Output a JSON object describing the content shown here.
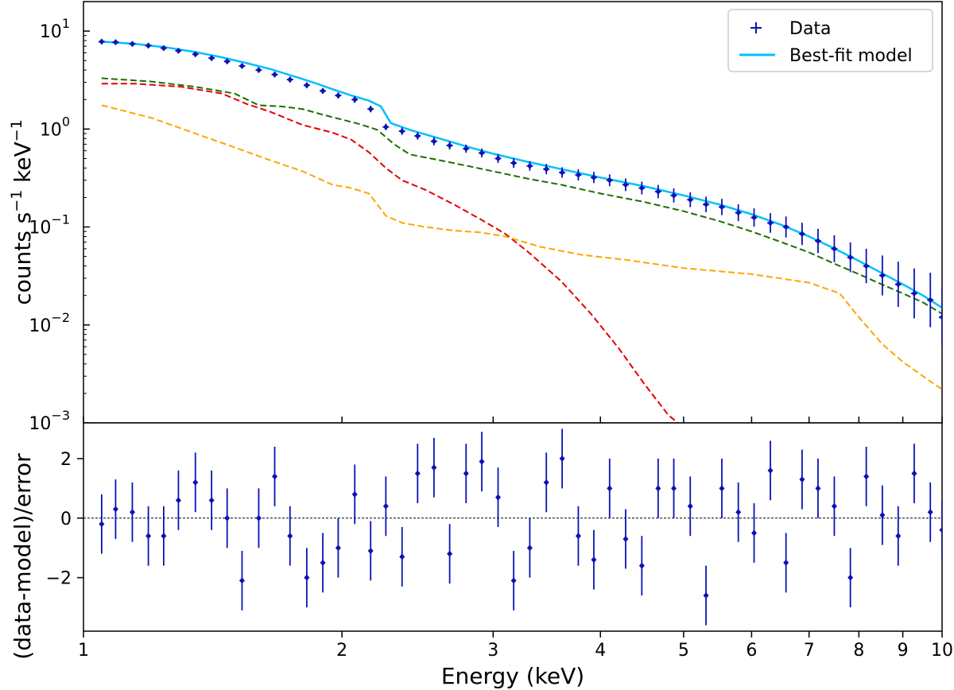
{
  "chart_data": [
    {
      "type": "line",
      "panel": "spectrum",
      "x_scale": "log",
      "y_scale": "log",
      "xlim": [
        1,
        10
      ],
      "ylim": [
        0.001,
        20
      ],
      "xlabel": "",
      "ylabel": "counts s⁻¹ keV⁻¹",
      "ylabel_parts": {
        "base": "counts s",
        "exp1": "−1",
        "mid": " keV",
        "exp2": "−1"
      },
      "y_ticks": [
        {
          "value": 10,
          "mantissa": "10",
          "exponent": "1"
        },
        {
          "value": 1,
          "mantissa": "10",
          "exponent": "0"
        },
        {
          "value": 0.1,
          "mantissa": "10",
          "exponent": "−1"
        },
        {
          "value": 0.01,
          "mantissa": "10",
          "exponent": "−2"
        },
        {
          "value": 0.001,
          "mantissa": "10",
          "exponent": "−3"
        }
      ],
      "legend": {
        "location": "top-right",
        "entries": [
          {
            "label": "Data",
            "marker": "+",
            "color": "#0a14b4"
          },
          {
            "label": "Best-fit model",
            "line": "solid",
            "color": "#00bfff"
          }
        ]
      },
      "series": [
        {
          "name": "Data",
          "kind": "points_with_errors",
          "color": "#0a14b4",
          "x": [
            1.05,
            1.09,
            1.14,
            1.19,
            1.24,
            1.29,
            1.35,
            1.41,
            1.47,
            1.53,
            1.6,
            1.67,
            1.74,
            1.82,
            1.9,
            1.98,
            2.07,
            2.16,
            2.25,
            2.35,
            2.45,
            2.56,
            2.67,
            2.79,
            2.91,
            3.04,
            3.17,
            3.31,
            3.46,
            3.61,
            3.77,
            3.93,
            4.1,
            4.28,
            4.47,
            4.67,
            4.87,
            5.09,
            5.31,
            5.54,
            5.79,
            6.04,
            6.31,
            6.58,
            6.87,
            7.17,
            7.49,
            7.82,
            8.16,
            8.52,
            8.89,
            9.28,
            9.69,
            10.0
          ],
          "y": [
            7.8,
            7.7,
            7.4,
            7.1,
            6.7,
            6.3,
            5.8,
            5.3,
            4.9,
            4.4,
            4.0,
            3.6,
            3.2,
            2.8,
            2.45,
            2.2,
            2.0,
            1.6,
            1.05,
            0.95,
            0.85,
            0.75,
            0.68,
            0.63,
            0.57,
            0.5,
            0.45,
            0.42,
            0.39,
            0.36,
            0.34,
            0.32,
            0.3,
            0.27,
            0.25,
            0.23,
            0.21,
            0.19,
            0.17,
            0.16,
            0.14,
            0.125,
            0.11,
            0.1,
            0.085,
            0.072,
            0.06,
            0.049,
            0.04,
            0.032,
            0.026,
            0.021,
            0.018,
            0.012
          ],
          "err_factor": [
            1.05,
            1.05,
            1.05,
            1.05,
            1.05,
            1.05,
            1.05,
            1.06,
            1.06,
            1.06,
            1.06,
            1.06,
            1.07,
            1.07,
            1.07,
            1.07,
            1.08,
            1.08,
            1.08,
            1.09,
            1.09,
            1.1,
            1.1,
            1.1,
            1.11,
            1.11,
            1.12,
            1.12,
            1.13,
            1.13,
            1.14,
            1.14,
            1.15,
            1.16,
            1.16,
            1.17,
            1.18,
            1.19,
            1.2,
            1.21,
            1.22,
            1.24,
            1.26,
            1.28,
            1.3,
            1.33,
            1.37,
            1.42,
            1.5,
            1.6,
            1.7,
            1.8,
            1.9,
            2.0
          ]
        },
        {
          "name": "Best-fit model",
          "kind": "line",
          "style": "solid",
          "color": "#00bfff",
          "x": [
            1.05,
            1.15,
            1.25,
            1.35,
            1.45,
            1.55,
            1.65,
            1.75,
            1.85,
            1.95,
            2.05,
            2.15,
            2.22,
            2.28,
            2.4,
            2.6,
            2.8,
            3.0,
            3.3,
            3.6,
            4.0,
            4.5,
            5.0,
            5.5,
            6.0,
            6.5,
            7.0,
            7.5,
            8.0,
            8.5,
            9.0,
            9.5,
            10.0
          ],
          "y": [
            7.8,
            7.4,
            6.8,
            6.1,
            5.4,
            4.7,
            4.1,
            3.5,
            3.0,
            2.55,
            2.2,
            1.95,
            1.7,
            1.15,
            0.98,
            0.8,
            0.66,
            0.56,
            0.46,
            0.39,
            0.32,
            0.26,
            0.21,
            0.17,
            0.135,
            0.105,
            0.08,
            0.06,
            0.045,
            0.034,
            0.026,
            0.02,
            0.015
          ]
        },
        {
          "name": "Component 1",
          "kind": "line",
          "style": "dashed",
          "color": "#1a6e00",
          "x": [
            1.05,
            1.2,
            1.35,
            1.5,
            1.6,
            1.7,
            1.8,
            1.9,
            2.0,
            2.1,
            2.2,
            2.3,
            2.4,
            2.6,
            2.8,
            3.0,
            3.3,
            3.6,
            4.0,
            4.5,
            5.0,
            5.5,
            6.0,
            6.5,
            7.0,
            7.5,
            8.0,
            8.5,
            9.0,
            9.5,
            10.0
          ],
          "y": [
            3.3,
            3.05,
            2.7,
            2.3,
            1.75,
            1.7,
            1.6,
            1.4,
            1.25,
            1.12,
            0.98,
            0.7,
            0.55,
            0.48,
            0.42,
            0.37,
            0.31,
            0.27,
            0.22,
            0.18,
            0.145,
            0.115,
            0.09,
            0.07,
            0.055,
            0.042,
            0.033,
            0.026,
            0.021,
            0.017,
            0.013
          ]
        },
        {
          "name": "Component 2",
          "kind": "line",
          "style": "dashed",
          "color": "#e50000",
          "x": [
            1.05,
            1.15,
            1.3,
            1.45,
            1.55,
            1.65,
            1.8,
            1.95,
            2.05,
            2.15,
            2.25,
            2.35,
            2.5,
            2.7,
            2.9,
            3.1,
            3.3,
            3.6,
            3.9,
            4.2,
            4.5,
            4.8,
            5.0
          ],
          "y": [
            2.9,
            2.9,
            2.7,
            2.3,
            1.8,
            1.5,
            1.1,
            0.92,
            0.78,
            0.58,
            0.4,
            0.3,
            0.24,
            0.17,
            0.12,
            0.085,
            0.055,
            0.028,
            0.013,
            0.0058,
            0.0025,
            0.0012,
            0.0009
          ]
        },
        {
          "name": "Component 3",
          "kind": "line",
          "style": "dashed",
          "color": "#ffa500",
          "x": [
            1.05,
            1.2,
            1.35,
            1.5,
            1.65,
            1.8,
            1.95,
            2.05,
            2.15,
            2.25,
            2.35,
            2.5,
            2.7,
            2.9,
            3.1,
            3.4,
            3.8,
            4.3,
            5.0,
            6.0,
            7.0,
            7.6,
            8.0,
            8.5,
            9.0,
            9.5,
            10.0
          ],
          "y": [
            1.75,
            1.3,
            0.9,
            0.65,
            0.48,
            0.37,
            0.27,
            0.25,
            0.22,
            0.13,
            0.11,
            0.1,
            0.092,
            0.088,
            0.08,
            0.063,
            0.052,
            0.046,
            0.038,
            0.033,
            0.027,
            0.021,
            0.012,
            0.0065,
            0.0042,
            0.003,
            0.0022
          ]
        }
      ]
    },
    {
      "type": "scatter",
      "panel": "residuals",
      "x_scale": "log",
      "xlim": [
        1,
        10
      ],
      "ylim": [
        -3.8,
        3.2
      ],
      "xlabel": "Energy (keV)",
      "ylabel": "(data-model)/error",
      "x_ticks": [
        {
          "value": 1,
          "label": "1"
        },
        {
          "value": 2,
          "label": "2"
        },
        {
          "value": 3,
          "label": "3"
        },
        {
          "value": 4,
          "label": "4"
        },
        {
          "value": 5,
          "label": "5"
        },
        {
          "value": 6,
          "label": "6"
        },
        {
          "value": 7,
          "label": "7"
        },
        {
          "value": 8,
          "label": "8"
        },
        {
          "value": 9,
          "label": "9"
        },
        {
          "value": 10,
          "label": "10"
        }
      ],
      "y_ticks": [
        {
          "value": 2,
          "label": "2"
        },
        {
          "value": 0,
          "label": "0"
        },
        {
          "value": -2,
          "label": "−2"
        }
      ],
      "zero_line": true,
      "series": [
        {
          "name": "Residuals",
          "color": "#0a14b4",
          "error": 1.0,
          "x": [
            1.05,
            1.09,
            1.14,
            1.19,
            1.24,
            1.29,
            1.35,
            1.41,
            1.47,
            1.53,
            1.6,
            1.67,
            1.74,
            1.82,
            1.9,
            1.98,
            2.07,
            2.16,
            2.25,
            2.35,
            2.45,
            2.56,
            2.67,
            2.79,
            2.91,
            3.04,
            3.17,
            3.31,
            3.46,
            3.61,
            3.77,
            3.93,
            4.1,
            4.28,
            4.47,
            4.67,
            4.87,
            5.09,
            5.31,
            5.54,
            5.79,
            6.04,
            6.31,
            6.58,
            6.87,
            7.17,
            7.49,
            7.82,
            8.16,
            8.52,
            8.89,
            9.28,
            9.69,
            10.0
          ],
          "y": [
            -0.2,
            0.3,
            0.2,
            -0.6,
            -0.6,
            0.6,
            1.2,
            0.6,
            0.0,
            -2.1,
            0.0,
            1.4,
            -0.6,
            -2.0,
            -1.5,
            -1.0,
            0.8,
            -1.1,
            0.4,
            -1.3,
            1.5,
            1.7,
            -1.2,
            1.5,
            1.9,
            0.7,
            -2.1,
            -1.0,
            1.2,
            2.0,
            -0.6,
            -1.4,
            1.0,
            -0.7,
            -1.6,
            1.0,
            1.0,
            0.4,
            -2.6,
            1.0,
            0.2,
            -0.5,
            1.6,
            -1.5,
            1.3,
            1.0,
            0.4,
            -2.0,
            1.4,
            0.1,
            -0.6,
            1.5,
            0.2,
            -0.4
          ]
        }
      ]
    }
  ]
}
